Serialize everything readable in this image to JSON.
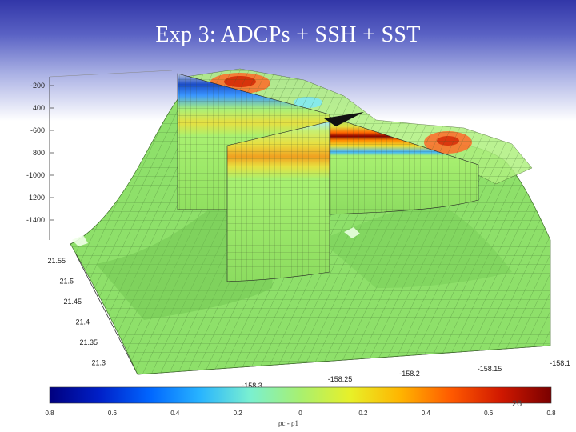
{
  "slide": {
    "title": "Exp 3: ADCPs + SSH + SST",
    "page_number": "26"
  },
  "figure": {
    "depth_ticks": [
      "-200",
      "400",
      "-600",
      "800",
      "-1000",
      "1200",
      "-1400"
    ],
    "lat_ticks": [
      "21.55",
      "21.5",
      "21.45",
      "21.4",
      "21.35",
      "21.3"
    ],
    "lon_ticks": [
      "-158.3",
      "-158.25",
      "-158.2",
      "-158.15",
      "-158.1"
    ],
    "colorbar": {
      "ticks": [
        "0.8",
        "0.6",
        "0.4",
        "0.2",
        "0",
        "0.2",
        "0.4",
        "0.6",
        "0.8"
      ],
      "label": "ρc - ρ1",
      "colors": [
        "#00007f",
        "#0020c8",
        "#0066ff",
        "#28b4ff",
        "#7af0d0",
        "#a8f070",
        "#e8f028",
        "#ffb400",
        "#ff5a00",
        "#d01800",
        "#7a0000"
      ]
    }
  }
}
